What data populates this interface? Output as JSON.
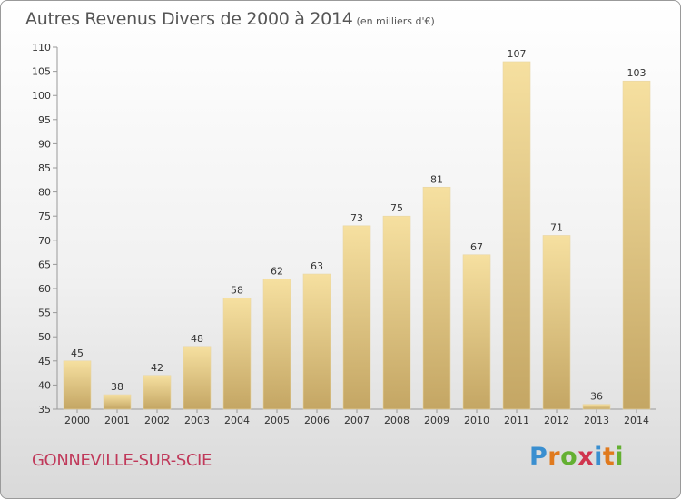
{
  "header": {
    "title": "Autres Revenus Divers de 2000 à 2014",
    "subtitle": "(en milliers d'€)"
  },
  "footer": {
    "location": "GONNEVILLE-SUR-SCIE",
    "logo_text": "Proxiti"
  },
  "colors": {
    "bar_top": "#f6e0a0",
    "bar_bottom": "#c4a664",
    "location_text": "#c0395a"
  },
  "chart_data": {
    "type": "bar",
    "title": "Autres Revenus Divers de 2000 à 2014",
    "subtitle": "(en milliers d'€)",
    "xlabel": "",
    "ylabel": "",
    "categories": [
      "2000",
      "2001",
      "2002",
      "2003",
      "2004",
      "2005",
      "2006",
      "2007",
      "2008",
      "2009",
      "2010",
      "2011",
      "2012",
      "2013",
      "2014"
    ],
    "values": [
      45,
      38,
      42,
      48,
      58,
      62,
      63,
      73,
      75,
      81,
      67,
      107,
      71,
      36,
      103
    ],
    "ylim": [
      35,
      110
    ],
    "yticks": [
      35,
      40,
      45,
      50,
      55,
      60,
      65,
      70,
      75,
      80,
      85,
      90,
      95,
      100,
      105,
      110
    ],
    "grid": false,
    "legend": "none"
  }
}
